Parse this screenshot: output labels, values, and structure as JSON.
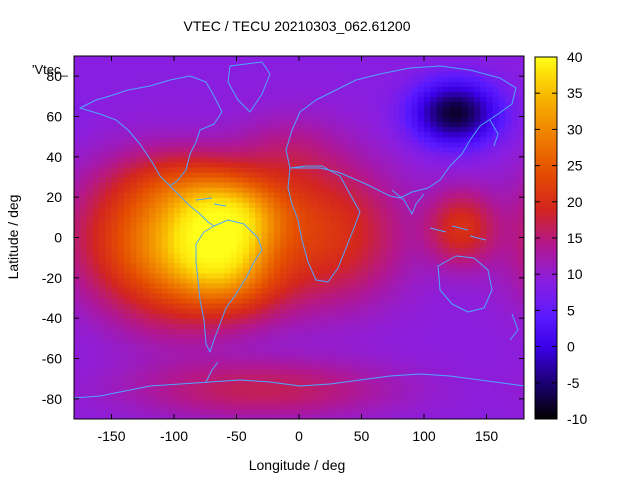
{
  "chart_data": {
    "type": "heatmap",
    "title": "VTEC / TECU 20210303_062.61200",
    "xlabel": "Longitude / deg",
    "ylabel": "Latitude / deg",
    "series_label": "'Vtec_",
    "xlim": [
      -180,
      180
    ],
    "ylim": [
      -90,
      90
    ],
    "x_ticks": [
      -150,
      -100,
      -50,
      0,
      50,
      100,
      150
    ],
    "y_ticks": [
      -80,
      -60,
      -40,
      -20,
      0,
      20,
      40,
      60,
      80
    ],
    "y_top_tick_label": "80",
    "colorbar": {
      "min": -10,
      "max": 40,
      "ticks": [
        -10,
        -5,
        0,
        5,
        10,
        15,
        20,
        25,
        30,
        35,
        40
      ],
      "palette": "black-blue-purple-red-orange-yellow"
    },
    "background_value": 7,
    "features": [
      {
        "name": "equatorial anomaly max (South America)",
        "lon": -65,
        "lat": 0,
        "value": 36
      },
      {
        "name": "anomaly north crest",
        "lon": -45,
        "lat": 12,
        "value": 30
      },
      {
        "name": "anomaly south crest",
        "lon": -50,
        "lat": -20,
        "value": 26
      },
      {
        "name": "dayside plume west",
        "lon": -120,
        "lat": 0,
        "value": 20
      },
      {
        "name": "Africa extension",
        "lon": 30,
        "lat": 0,
        "value": 17
      },
      {
        "name": "Indonesia patch",
        "lon": 130,
        "lat": 5,
        "value": 16
      },
      {
        "name": "Antarctic enhancement",
        "lon": -30,
        "lat": -75,
        "value": 11
      },
      {
        "name": "Siberian depletion",
        "lon": 125,
        "lat": 62,
        "value": -9
      }
    ],
    "coastline_color": "#4fa6ff"
  }
}
